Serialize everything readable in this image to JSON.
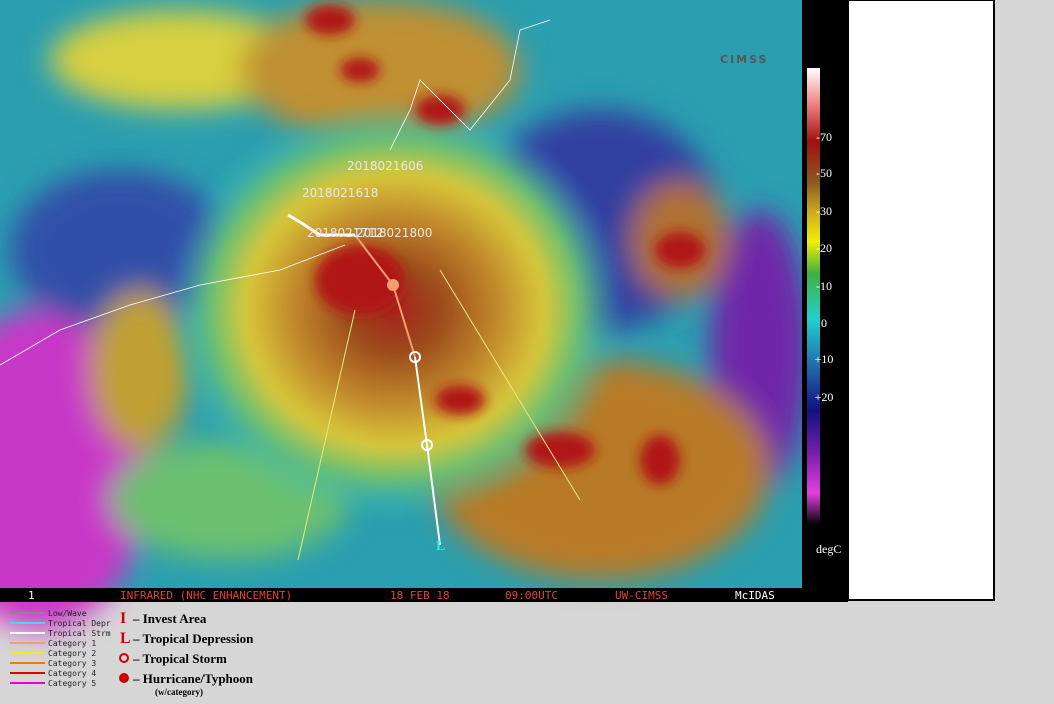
{
  "logo": "CIMSS",
  "track_labels": [
    "2018021606",
    "2018021618",
    "2018021712",
    "2018021800"
  ],
  "colorbar": {
    "labels": [
      "-70",
      "-50",
      "-30",
      "-20",
      "-10",
      "0",
      "+10",
      "+20"
    ],
    "unit": "degC"
  },
  "status_bar": {
    "frame": "1",
    "product": "INFRARED (NHC ENHANCEMENT)",
    "date": "18 FEB 18",
    "time": "09:00UTC",
    "source": "UW-CIMSS",
    "software": "McIDAS"
  },
  "line_legend": [
    "Low/Wave",
    "Tropical Depr",
    "Tropical Strm",
    "Category 1",
    "Category 2",
    "Category 3",
    "Category 4",
    "Category 5"
  ],
  "symbol_legend": [
    {
      "symbol": "I",
      "label": "– Invest Area"
    },
    {
      "symbol": "L",
      "label": "– Tropical Depression"
    },
    {
      "symbol": "",
      "label": "– Tropical Storm"
    },
    {
      "symbol": "",
      "label": "– Hurricane/Typhoon"
    }
  ],
  "symbol_note": "(w/category)"
}
